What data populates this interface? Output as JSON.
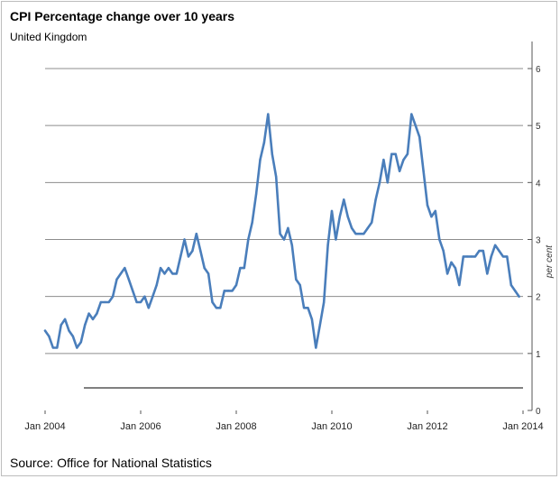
{
  "header": {
    "title": "CPI Percentage change over 10 years",
    "subtitle": "United Kingdom"
  },
  "footer": {
    "source": "Source: Office for National Statistics"
  },
  "colors": {
    "line": "#4a7ebb",
    "grid": "#8c8c8c",
    "axis": "#000000"
  },
  "chart_data": {
    "type": "line",
    "title": "CPI Percentage change over 10 years",
    "subtitle": "United Kingdom",
    "xlabel": "",
    "ylabel": "per cent",
    "ylim": [
      0,
      6
    ],
    "yticks": [
      0,
      1,
      2,
      3,
      4,
      5,
      6
    ],
    "ytick_labels": [
      "0",
      "1",
      "2",
      "3",
      "4",
      "5",
      "6"
    ],
    "xlim": [
      "2004-01",
      "2014-01"
    ],
    "xticks": [
      "2004-01",
      "2006-01",
      "2008-01",
      "2010-01",
      "2012-01",
      "2014-01"
    ],
    "xtick_labels": [
      "Jan 2004",
      "Jan 2006",
      "Jan 2008",
      "Jan 2010",
      "Jan 2012",
      "Jan 2014"
    ],
    "grid": true,
    "series": [
      {
        "x": [
          "2004-01",
          "2004-02",
          "2004-03",
          "2004-04",
          "2004-05",
          "2004-06",
          "2004-07",
          "2004-08",
          "2004-09",
          "2004-10",
          "2004-11",
          "2004-12",
          "2005-01",
          "2005-02",
          "2005-03",
          "2005-04",
          "2005-05",
          "2005-06",
          "2005-07",
          "2005-08",
          "2005-09",
          "2005-10",
          "2005-11",
          "2005-12",
          "2006-01",
          "2006-02",
          "2006-03",
          "2006-04",
          "2006-05",
          "2006-06",
          "2006-07",
          "2006-08",
          "2006-09",
          "2006-10",
          "2006-11",
          "2006-12",
          "2007-01",
          "2007-02",
          "2007-03",
          "2007-04",
          "2007-05",
          "2007-06",
          "2007-07",
          "2007-08",
          "2007-09",
          "2007-10",
          "2007-11",
          "2007-12",
          "2008-01",
          "2008-02",
          "2008-03",
          "2008-04",
          "2008-05",
          "2008-06",
          "2008-07",
          "2008-08",
          "2008-09",
          "2008-10",
          "2008-11",
          "2008-12",
          "2009-01",
          "2009-02",
          "2009-03",
          "2009-04",
          "2009-05",
          "2009-06",
          "2009-07",
          "2009-08",
          "2009-09",
          "2009-10",
          "2009-11",
          "2009-12",
          "2010-01",
          "2010-02",
          "2010-03",
          "2010-04",
          "2010-05",
          "2010-06",
          "2010-07",
          "2010-08",
          "2010-09",
          "2010-10",
          "2010-11",
          "2010-12",
          "2011-01",
          "2011-02",
          "2011-03",
          "2011-04",
          "2011-05",
          "2011-06",
          "2011-07",
          "2011-08",
          "2011-09",
          "2011-10",
          "2011-11",
          "2011-12",
          "2012-01",
          "2012-02",
          "2012-03",
          "2012-04",
          "2012-05",
          "2012-06",
          "2012-07",
          "2012-08",
          "2012-09",
          "2012-10",
          "2012-11",
          "2012-12",
          "2013-01",
          "2013-02",
          "2013-03",
          "2013-04",
          "2013-05",
          "2013-06",
          "2013-07",
          "2013-08",
          "2013-09",
          "2013-10",
          "2013-11",
          "2013-12"
        ],
        "values": [
          1.4,
          1.3,
          1.1,
          1.1,
          1.5,
          1.6,
          1.4,
          1.3,
          1.1,
          1.2,
          1.5,
          1.7,
          1.6,
          1.7,
          1.9,
          1.9,
          1.9,
          2.0,
          2.3,
          2.4,
          2.5,
          2.3,
          2.1,
          1.9,
          1.9,
          2.0,
          1.8,
          2.0,
          2.2,
          2.5,
          2.4,
          2.5,
          2.4,
          2.4,
          2.7,
          3.0,
          2.7,
          2.8,
          3.1,
          2.8,
          2.5,
          2.4,
          1.9,
          1.8,
          1.8,
          2.1,
          2.1,
          2.1,
          2.2,
          2.5,
          2.5,
          3.0,
          3.3,
          3.8,
          4.4,
          4.7,
          5.2,
          4.5,
          4.1,
          3.1,
          3.0,
          3.2,
          2.9,
          2.3,
          2.2,
          1.8,
          1.8,
          1.6,
          1.1,
          1.5,
          1.9,
          2.9,
          3.5,
          3.0,
          3.4,
          3.7,
          3.4,
          3.2,
          3.1,
          3.1,
          3.1,
          3.2,
          3.3,
          3.7,
          4.0,
          4.4,
          4.0,
          4.5,
          4.5,
          4.2,
          4.4,
          4.5,
          5.2,
          5.0,
          4.8,
          4.2,
          3.6,
          3.4,
          3.5,
          3.0,
          2.8,
          2.4,
          2.6,
          2.5,
          2.2,
          2.7,
          2.7,
          2.7,
          2.7,
          2.8,
          2.8,
          2.4,
          2.7,
          2.9,
          2.8,
          2.7,
          2.7,
          2.2,
          2.1,
          2.0
        ]
      }
    ]
  }
}
